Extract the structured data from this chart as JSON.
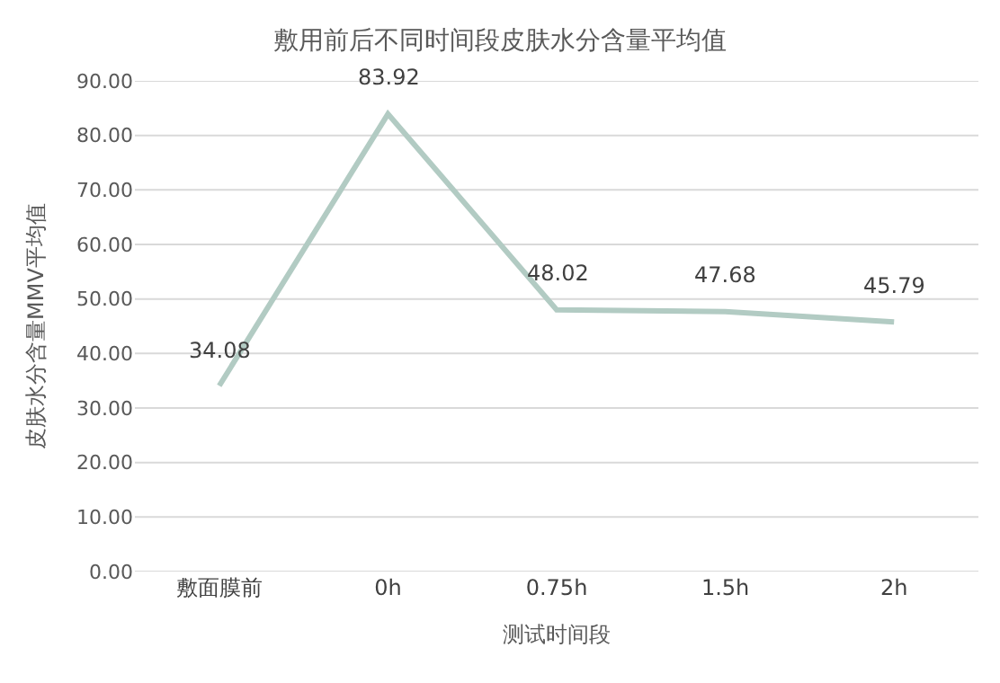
{
  "chart_data": {
    "type": "line",
    "title": "敷用前后不同时间段皮肤水分含量平均值",
    "xlabel": "测试时间段",
    "ylabel": "皮肤水分含量MMV平均值",
    "categories": [
      "敷面膜前",
      "0h",
      "0.75h",
      "1.5h",
      "2h"
    ],
    "series": [
      {
        "color": "#b2cbc3",
        "values": [
          34.08,
          83.92,
          48.02,
          47.68,
          45.79
        ]
      }
    ],
    "ylim": [
      0,
      90
    ],
    "yticks": [
      {
        "value": 0,
        "label": "0.00"
      },
      {
        "value": 10,
        "label": "10.00"
      },
      {
        "value": 20,
        "label": "20.00"
      },
      {
        "value": 30,
        "label": "30.00"
      },
      {
        "value": 40,
        "label": "40.00"
      },
      {
        "value": 50,
        "label": "50.00"
      },
      {
        "value": 60,
        "label": "60.00"
      },
      {
        "value": 70,
        "label": "70.00"
      },
      {
        "value": 80,
        "label": "80.00"
      },
      {
        "value": 90,
        "label": "90.00"
      }
    ],
    "grid": "y",
    "data_labels": true,
    "marker": "none",
    "line_style": "solid"
  }
}
